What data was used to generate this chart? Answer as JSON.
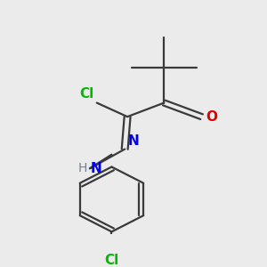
{
  "background_color": "#ebebeb",
  "bond_color": "#3a3a3a",
  "cl_color": "#00bb00",
  "o_color": "#dd0000",
  "n_color": "#0000ee",
  "h_color": "#708090",
  "figsize": [
    3.0,
    3.0
  ],
  "dpi": 100,
  "xlim": [
    0,
    300
  ],
  "ylim": [
    0,
    300
  ]
}
